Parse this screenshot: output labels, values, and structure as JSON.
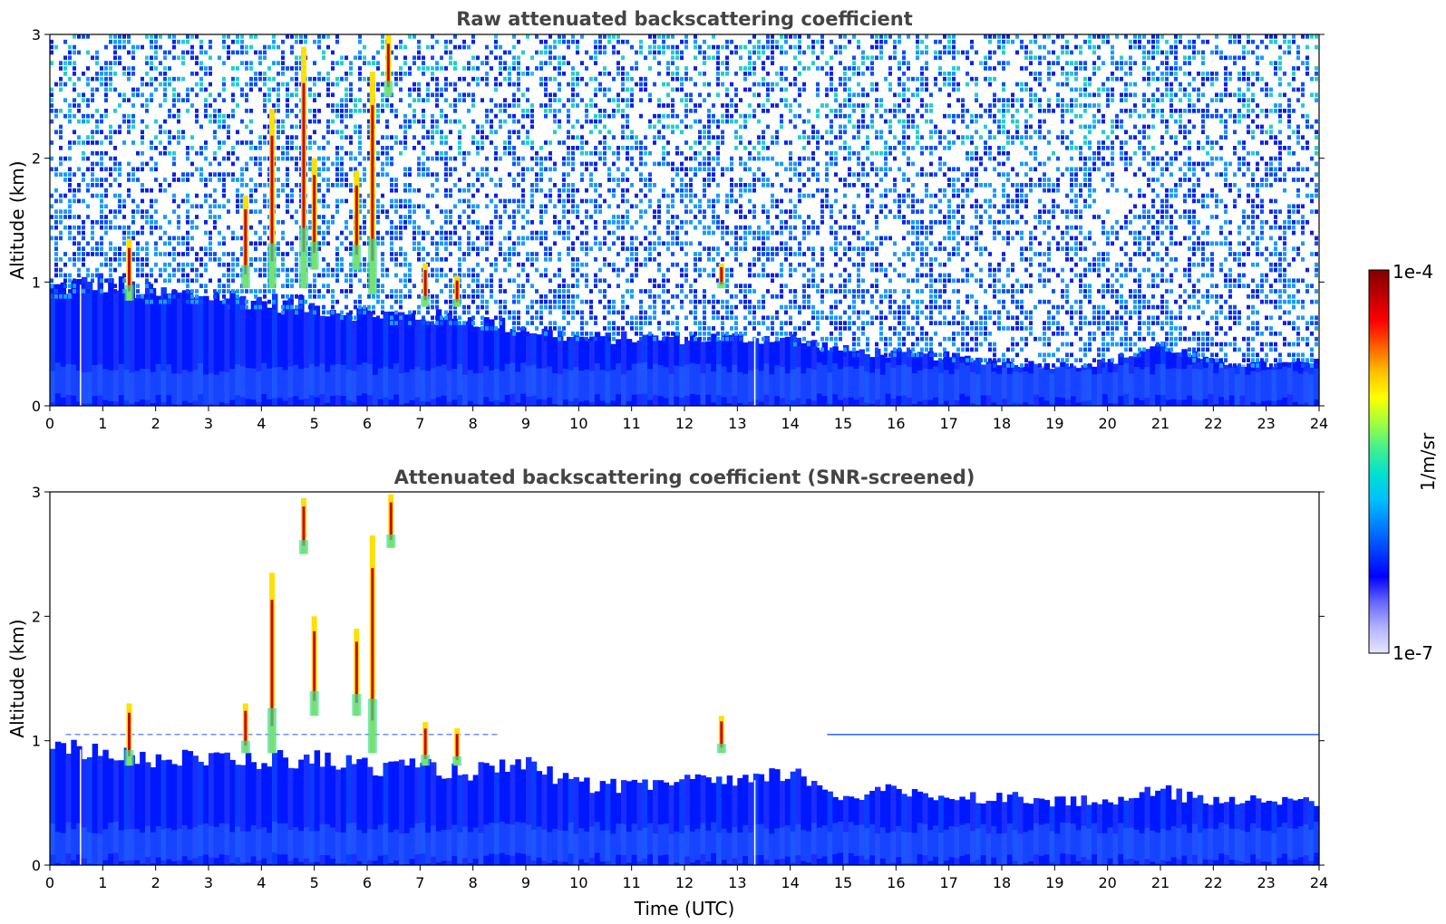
{
  "chart_data": [
    {
      "type": "heatmap",
      "title": "Raw attenuated backscattering coefficient",
      "ylabel": "Altitude (km)",
      "xlabel": "",
      "xlim": [
        0,
        24
      ],
      "ylim": [
        0,
        3
      ],
      "x_ticks": [
        "0",
        "1",
        "2",
        "3",
        "4",
        "5",
        "6",
        "7",
        "8",
        "9",
        "10",
        "11",
        "12",
        "13",
        "14",
        "15",
        "16",
        "17",
        "18",
        "19",
        "20",
        "21",
        "22",
        "23",
        "24"
      ],
      "y_ticks": [
        "0",
        "1",
        "2",
        "3"
      ],
      "boundary_layer_top_km": [
        [
          0,
          0.95
        ],
        [
          1,
          1.0
        ],
        [
          2,
          0.9
        ],
        [
          3,
          0.9
        ],
        [
          4,
          0.85
        ],
        [
          5,
          0.8
        ],
        [
          6,
          0.75
        ],
        [
          7,
          0.72
        ],
        [
          8,
          0.7
        ],
        [
          9,
          0.62
        ],
        [
          10,
          0.55
        ],
        [
          11,
          0.55
        ],
        [
          12,
          0.55
        ],
        [
          13,
          0.55
        ],
        [
          14,
          0.55
        ],
        [
          15,
          0.45
        ],
        [
          16,
          0.42
        ],
        [
          17,
          0.4
        ],
        [
          18,
          0.35
        ],
        [
          19,
          0.33
        ],
        [
          20,
          0.35
        ],
        [
          21,
          0.5
        ],
        [
          22,
          0.35
        ],
        [
          23,
          0.33
        ],
        [
          24,
          0.35
        ]
      ],
      "clouds": [
        {
          "t": 1.5,
          "h0": 0.85,
          "h1": 1.35
        },
        {
          "t": 3.7,
          "h0": 0.95,
          "h1": 1.7
        },
        {
          "t": 4.2,
          "h0": 0.95,
          "h1": 2.4
        },
        {
          "t": 4.8,
          "h0": 0.95,
          "h1": 2.9
        },
        {
          "t": 5.0,
          "h0": 1.1,
          "h1": 2.0
        },
        {
          "t": 5.8,
          "h0": 1.1,
          "h1": 1.9
        },
        {
          "t": 6.1,
          "h0": 0.9,
          "h1": 2.7
        },
        {
          "t": 6.4,
          "h0": 2.5,
          "h1": 3.0
        },
        {
          "t": 7.1,
          "h0": 0.8,
          "h1": 1.15
        },
        {
          "t": 7.7,
          "h0": 0.8,
          "h1": 1.05
        },
        {
          "t": 12.7,
          "h0": 0.95,
          "h1": 1.15
        }
      ]
    },
    {
      "type": "heatmap",
      "title": "Attenuated backscattering coefficient (SNR-screened)",
      "ylabel": "Altitude (km)",
      "xlabel": "Time (UTC)",
      "xlim": [
        0,
        24
      ],
      "ylim": [
        0,
        3
      ],
      "x_ticks": [
        "0",
        "1",
        "2",
        "3",
        "4",
        "5",
        "6",
        "7",
        "8",
        "9",
        "10",
        "11",
        "12",
        "13",
        "14",
        "15",
        "16",
        "17",
        "18",
        "19",
        "20",
        "21",
        "22",
        "23",
        "24"
      ],
      "y_ticks": [
        "0",
        "1",
        "2",
        "3"
      ],
      "boundary_layer_top_km": [
        [
          0,
          0.9
        ],
        [
          1,
          0.95
        ],
        [
          2,
          0.85
        ],
        [
          3,
          0.85
        ],
        [
          4,
          0.85
        ],
        [
          5,
          0.85
        ],
        [
          6,
          0.8
        ],
        [
          7,
          0.78
        ],
        [
          8,
          0.75
        ],
        [
          9,
          0.8
        ],
        [
          10,
          0.65
        ],
        [
          11,
          0.62
        ],
        [
          12,
          0.7
        ],
        [
          13,
          0.65
        ],
        [
          14,
          0.75
        ],
        [
          15,
          0.55
        ],
        [
          16,
          0.6
        ],
        [
          17,
          0.55
        ],
        [
          18,
          0.55
        ],
        [
          19,
          0.52
        ],
        [
          20,
          0.5
        ],
        [
          21,
          0.6
        ],
        [
          22,
          0.5
        ],
        [
          23,
          0.55
        ],
        [
          24,
          0.5
        ]
      ],
      "clouds": [
        {
          "t": 1.5,
          "h0": 0.8,
          "h1": 1.3
        },
        {
          "t": 3.7,
          "h0": 0.9,
          "h1": 1.3
        },
        {
          "t": 4.2,
          "h0": 0.9,
          "h1": 2.35
        },
        {
          "t": 4.8,
          "h0": 2.5,
          "h1": 2.95
        },
        {
          "t": 5.0,
          "h0": 1.2,
          "h1": 2.0
        },
        {
          "t": 5.8,
          "h0": 1.2,
          "h1": 1.9
        },
        {
          "t": 6.1,
          "h0": 0.9,
          "h1": 2.65
        },
        {
          "t": 6.45,
          "h0": 2.55,
          "h1": 2.98
        },
        {
          "t": 7.1,
          "h0": 0.8,
          "h1": 1.15
        },
        {
          "t": 7.7,
          "h0": 0.8,
          "h1": 1.1
        },
        {
          "t": 12.7,
          "h0": 0.9,
          "h1": 1.2
        }
      ]
    }
  ],
  "colorbar": {
    "label": "1/m/sr",
    "max_label": "1e-4",
    "min_label": "1e-7",
    "colors": [
      "#e6e6ff",
      "#b3b3ff",
      "#6666ff",
      "#0000ff",
      "#0040ff",
      "#0080ff",
      "#00c0ff",
      "#00e0d0",
      "#40f090",
      "#a0ff40",
      "#ffff00",
      "#ffc000",
      "#ff6000",
      "#ff0000",
      "#c00000",
      "#800000"
    ]
  }
}
